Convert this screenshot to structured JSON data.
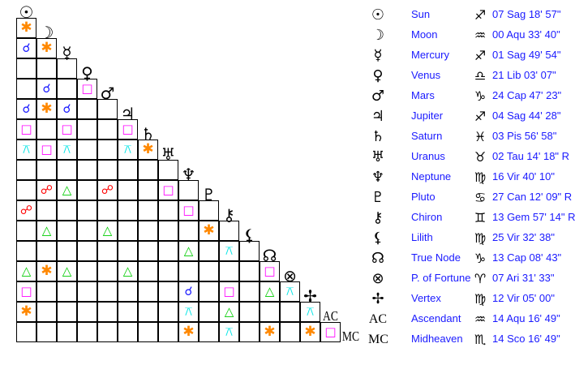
{
  "aspect_colors": {
    "conjunction": "#1a1aff",
    "sextile": "#ff8800",
    "square": "#ff00ff",
    "trine": "#00cc00",
    "quincunx": "#00e5e5",
    "opposition": "#ff0000"
  },
  "aspect_symbols": {
    "conjunction": "☌",
    "sextile": "✱",
    "square": "□",
    "trine": "△",
    "quincunx": "⚻",
    "opposition": "☍"
  },
  "planets": [
    {
      "glyph": "☉",
      "name": "Sun",
      "sign_glyph": "♐",
      "position": "07 Sag 18' 57\""
    },
    {
      "glyph": "☽",
      "name": "Moon",
      "sign_glyph": "♒",
      "position": "00 Aqu 33' 40\""
    },
    {
      "glyph": "☿",
      "name": "Mercury",
      "sign_glyph": "♐",
      "position": "01 Sag 49' 54\""
    },
    {
      "glyph": "♀",
      "name": "Venus",
      "sign_glyph": "♎",
      "position": "21 Lib 03' 07\""
    },
    {
      "glyph": "♂",
      "name": "Mars",
      "sign_glyph": "♑",
      "position": "24 Cap 47' 23\""
    },
    {
      "glyph": "♃",
      "name": "Jupiter",
      "sign_glyph": "♐",
      "position": "04 Sag 44' 28\""
    },
    {
      "glyph": "♄",
      "name": "Saturn",
      "sign_glyph": "♓",
      "position": "03 Pis 56' 58\""
    },
    {
      "glyph": "♅",
      "name": "Uranus",
      "sign_glyph": "♉",
      "position": "02 Tau 14' 18\" R"
    },
    {
      "glyph": "♆",
      "name": "Neptune",
      "sign_glyph": "♍",
      "position": "16 Vir 40' 10\""
    },
    {
      "glyph": "♇",
      "name": "Pluto",
      "sign_glyph": "♋",
      "position": "27 Can 12' 09\" R"
    },
    {
      "glyph": "⚷",
      "name": "Chiron",
      "sign_glyph": "♊",
      "position": "13 Gem 57' 14\" R"
    },
    {
      "glyph": "⚸",
      "name": "Lilith",
      "sign_glyph": "♍",
      "position": "25 Vir 32' 38\""
    },
    {
      "glyph": "☊",
      "name": "True Node",
      "sign_glyph": "♑",
      "position": "13 Cap 08' 43\""
    },
    {
      "glyph": "⊗",
      "name": "P. of Fortune",
      "sign_glyph": "♈",
      "position": "07 Ari 31' 33\""
    },
    {
      "glyph": "✢",
      "name": "Vertex",
      "sign_glyph": "♍",
      "position": "12 Vir 05' 00\""
    },
    {
      "glyph": "AC",
      "name": "Ascendant",
      "sign_glyph": "♒",
      "position": "14 Aqu 16' 49\""
    },
    {
      "glyph": "MC",
      "name": "Midheaven",
      "sign_glyph": "♏",
      "position": "14 Sco 16' 49\""
    }
  ],
  "aspect_grid": [
    [
      "sextile"
    ],
    [
      "conjunction",
      "sextile"
    ],
    [
      null,
      null,
      null
    ],
    [
      null,
      "conjunction",
      null,
      "square"
    ],
    [
      "conjunction",
      "sextile",
      "conjunction",
      null,
      null
    ],
    [
      "square",
      null,
      "square",
      null,
      null,
      "square"
    ],
    [
      "quincunx",
      "square",
      "quincunx",
      null,
      null,
      "quincunx",
      "sextile"
    ],
    [
      null,
      null,
      null,
      null,
      null,
      null,
      null,
      null
    ],
    [
      null,
      "opposition",
      "trine",
      null,
      "opposition",
      null,
      null,
      "square",
      null
    ],
    [
      "opposition",
      null,
      null,
      null,
      null,
      null,
      null,
      null,
      "square",
      null
    ],
    [
      null,
      "trine",
      null,
      null,
      "trine",
      null,
      null,
      null,
      null,
      "sextile",
      null
    ],
    [
      null,
      null,
      null,
      null,
      null,
      null,
      null,
      null,
      "trine",
      null,
      "quincunx",
      null
    ],
    [
      "trine",
      "sextile",
      "trine",
      null,
      null,
      "trine",
      null,
      null,
      null,
      null,
      null,
      null,
      "square"
    ],
    [
      "square",
      null,
      null,
      null,
      null,
      null,
      null,
      null,
      "conjunction",
      null,
      "square",
      null,
      "trine",
      "quincunx"
    ],
    [
      "sextile",
      null,
      null,
      null,
      null,
      null,
      null,
      null,
      "quincunx",
      null,
      "trine",
      null,
      null,
      null,
      "quincunx"
    ],
    [
      null,
      null,
      null,
      null,
      null,
      null,
      null,
      null,
      "sextile",
      null,
      "quincunx",
      null,
      "sextile",
      null,
      "sextile",
      "square"
    ]
  ]
}
